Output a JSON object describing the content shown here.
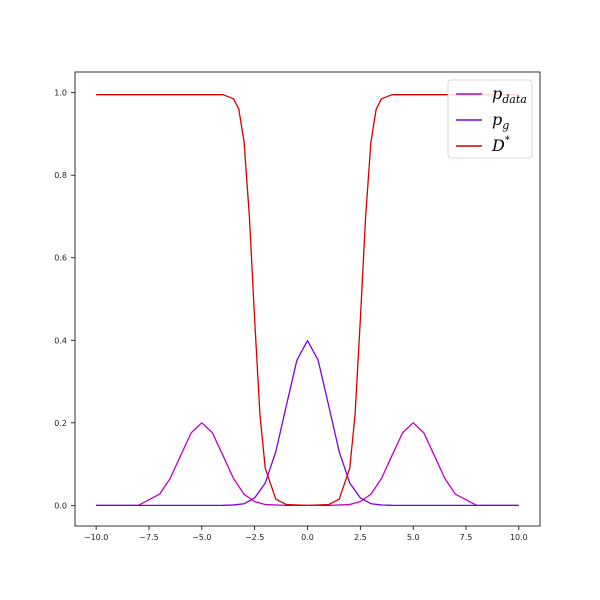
{
  "chart_data": {
    "type": "line",
    "title": "",
    "xlabel": "",
    "ylabel": "",
    "xlim": [
      -11.0,
      11.0
    ],
    "ylim": [
      -0.05,
      1.05
    ],
    "xticks": [
      -10.0,
      -7.5,
      -5.0,
      -2.5,
      0.0,
      2.5,
      5.0,
      7.5,
      10.0
    ],
    "xtick_labels": [
      "−10.0",
      "−7.5",
      "−5.0",
      "−2.5",
      "0.0",
      "2.5",
      "5.0",
      "7.5",
      "10.0"
    ],
    "yticks": [
      0.0,
      0.2,
      0.4,
      0.6,
      0.8,
      1.0
    ],
    "ytick_labels": [
      "0.0",
      "0.2",
      "0.4",
      "0.6",
      "0.8",
      "1.0"
    ],
    "grid": false,
    "legend_position": "top-right",
    "series": [
      {
        "name": "p_data",
        "color": "#bf00bf",
        "x": [
          -10,
          -9,
          -8,
          -7,
          -6.5,
          -6,
          -5.5,
          -5,
          -4.5,
          -4,
          -3.5,
          -3,
          -2.5,
          -2,
          -1,
          0,
          1,
          2,
          2.5,
          3,
          3.5,
          4,
          4.5,
          5,
          5.5,
          6,
          6.5,
          7,
          8,
          9,
          10
        ],
        "y": [
          0.0,
          0.0,
          0.0001,
          0.027,
          0.065,
          0.121,
          0.176,
          0.2,
          0.176,
          0.121,
          0.065,
          0.027,
          0.009,
          0.002,
          0.0,
          0.0,
          0.0,
          0.002,
          0.009,
          0.027,
          0.065,
          0.121,
          0.176,
          0.2,
          0.176,
          0.121,
          0.065,
          0.027,
          0.0001,
          0.0,
          0.0
        ]
      },
      {
        "name": "p_g",
        "color": "#7b00e0",
        "x": [
          -10,
          -4,
          -3.5,
          -3,
          -2.5,
          -2,
          -1.5,
          -1,
          -0.5,
          0,
          0.5,
          1,
          1.5,
          2,
          2.5,
          3,
          3.5,
          4,
          10
        ],
        "y": [
          0.0,
          0.0001,
          0.001,
          0.004,
          0.018,
          0.054,
          0.13,
          0.242,
          0.352,
          0.399,
          0.352,
          0.242,
          0.13,
          0.054,
          0.018,
          0.004,
          0.001,
          0.0001,
          0.0
        ]
      },
      {
        "name": "D*",
        "color": "#d40000",
        "x": [
          -10,
          -4,
          -3.5,
          -3.25,
          -3,
          -2.75,
          -2.5,
          -2.25,
          -2,
          -1.5,
          -1,
          0,
          1,
          1.5,
          2,
          2.25,
          2.5,
          2.75,
          3,
          3.25,
          3.5,
          4,
          10
        ],
        "y": [
          0.995,
          0.995,
          0.985,
          0.96,
          0.88,
          0.7,
          0.45,
          0.22,
          0.09,
          0.015,
          0.002,
          0.0,
          0.002,
          0.015,
          0.09,
          0.22,
          0.45,
          0.7,
          0.88,
          0.96,
          0.985,
          0.995,
          0.995
        ]
      }
    ],
    "legend": [
      {
        "base": "p",
        "sub": "data",
        "sup": ""
      },
      {
        "base": "p",
        "sub": "g",
        "sup": ""
      },
      {
        "base": "D",
        "sub": "",
        "sup": "*"
      }
    ]
  }
}
